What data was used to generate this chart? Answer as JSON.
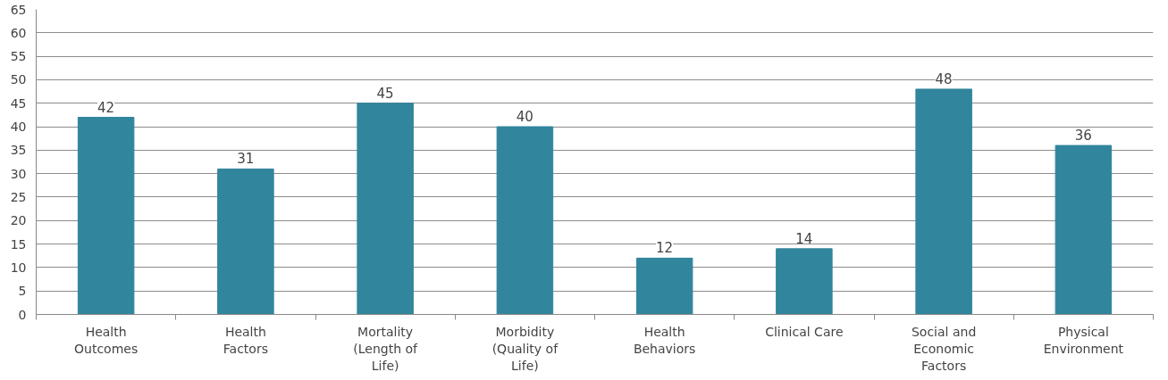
{
  "chart_data": {
    "type": "bar",
    "categories": [
      "Health Outcomes",
      "Health Factors",
      "Mortality (Length of Life)",
      "Morbidity (Quality of Life)",
      "Health Behaviors",
      "Clinical Care",
      "Social and Economic Factors",
      "Physical Environment"
    ],
    "values": [
      42,
      31,
      45,
      40,
      12,
      14,
      48,
      36
    ],
    "color": "#31859c",
    "ylim": [
      0,
      65
    ],
    "yticks": [
      0,
      5,
      10,
      15,
      20,
      25,
      30,
      35,
      40,
      45,
      50,
      55,
      60,
      65
    ],
    "grid": "y",
    "data_labels": true
  }
}
